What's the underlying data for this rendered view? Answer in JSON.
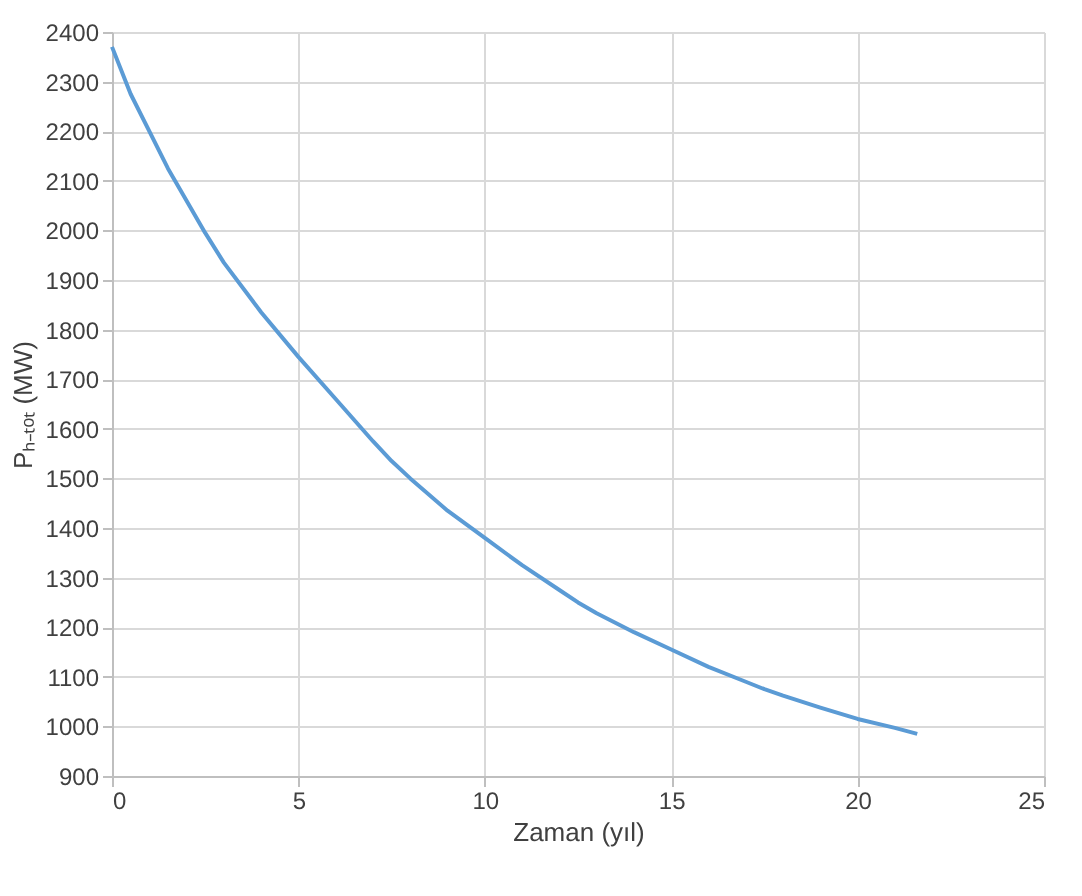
{
  "chart_data": {
    "type": "line",
    "xlabel": "Zaman (yıl)",
    "ylabel": "Pₕ₋ₜₒₜ (MW)",
    "xlim": [
      0,
      25
    ],
    "xticks": [
      0,
      5,
      10,
      15,
      20,
      25
    ],
    "ylim": [
      900,
      2400
    ],
    "yticks": [
      900,
      1000,
      1100,
      1200,
      1300,
      1400,
      1500,
      1600,
      1700,
      1800,
      1900,
      2000,
      2100,
      2200,
      2300,
      2400
    ],
    "grid": true,
    "marker": "none",
    "line_style": "solid",
    "series": [
      {
        "color": "#5b9bd5",
        "x": [
          0,
          0.5,
          1,
          1.5,
          2,
          2.5,
          3,
          4,
          5,
          6,
          7,
          7.5,
          8,
          9,
          10,
          11,
          12,
          12.5,
          13,
          14,
          15,
          16,
          17,
          17.5,
          18,
          19,
          20,
          21,
          21.6
        ],
        "values": [
          2370,
          2275,
          2200,
          2125,
          2060,
          1995,
          1935,
          1835,
          1745,
          1660,
          1575,
          1535,
          1500,
          1435,
          1380,
          1325,
          1275,
          1250,
          1228,
          1190,
          1155,
          1120,
          1090,
          1075,
          1062,
          1038,
          1015,
          997,
          985
        ]
      }
    ]
  }
}
